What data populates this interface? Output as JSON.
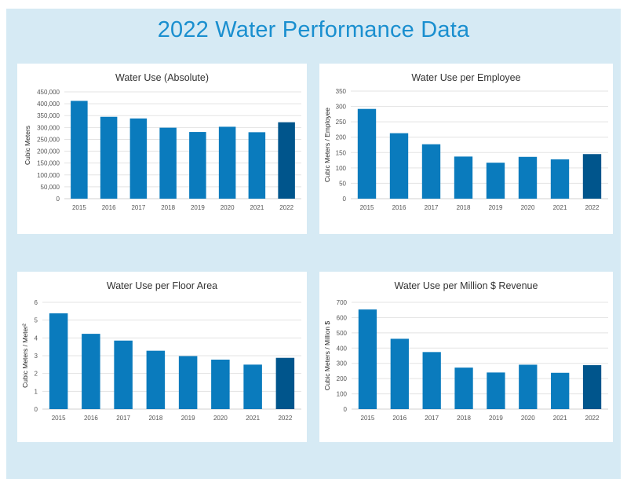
{
  "page": {
    "title": "2022 Water Performance Data",
    "colors": {
      "background_panel": "#d6eaf4",
      "title": "#1a8fcf",
      "bar": "#0a7bbd",
      "bar_highlight": "#00558c"
    }
  },
  "chart_data": [
    {
      "type": "bar",
      "title": "Water Use (Absolute)",
      "xlabel": "",
      "ylabel": "Cubic Meters",
      "categories": [
        "2015",
        "2016",
        "2017",
        "2018",
        "2019",
        "2020",
        "2021",
        "2022"
      ],
      "values": [
        412000,
        345000,
        338000,
        299000,
        281000,
        303000,
        280000,
        322000
      ],
      "highlight_category": "2022",
      "ylim": [
        0,
        450000
      ],
      "yticks": [
        0,
        50000,
        100000,
        150000,
        200000,
        250000,
        300000,
        350000,
        400000,
        450000
      ],
      "ytick_labels": [
        "0",
        "50,000",
        "100,000",
        "150,000",
        "200,000",
        "250,000",
        "300,000",
        "350,000",
        "400,000",
        "450,000"
      ],
      "grid": true,
      "legend": "none"
    },
    {
      "type": "bar",
      "title": "Water Use per Employee",
      "xlabel": "",
      "ylabel": "Cubic Meters / Employee",
      "categories": [
        "2015",
        "2016",
        "2017",
        "2018",
        "2019",
        "2020",
        "2021",
        "2022"
      ],
      "values": [
        292,
        213,
        177,
        137,
        117,
        136,
        128,
        145
      ],
      "highlight_category": "2022",
      "ylim": [
        0,
        350
      ],
      "yticks": [
        0,
        50,
        100,
        150,
        200,
        250,
        300,
        350
      ],
      "ytick_labels": [
        "0",
        "50",
        "100",
        "150",
        "200",
        "250",
        "300",
        "350"
      ],
      "grid": true,
      "legend": "none"
    },
    {
      "type": "bar",
      "title": "Water Use per Floor Area",
      "xlabel": "",
      "ylabel": "Cubic Meters / Meter²",
      "categories": [
        "2015",
        "2016",
        "2017",
        "2018",
        "2019",
        "2020",
        "2021",
        "2022"
      ],
      "values": [
        5.38,
        4.23,
        3.85,
        3.28,
        2.98,
        2.78,
        2.5,
        2.88
      ],
      "highlight_category": "2022",
      "ylim": [
        0,
        6
      ],
      "yticks": [
        0,
        1,
        2,
        3,
        4,
        5,
        6
      ],
      "ytick_labels": [
        "0",
        "1",
        "2",
        "3",
        "4",
        "5",
        "6"
      ],
      "grid": true,
      "legend": "none"
    },
    {
      "type": "bar",
      "title": "Water Use per Million $ Revenue",
      "xlabel": "",
      "ylabel": "Cubic Meters / Million $",
      "categories": [
        "2015",
        "2016",
        "2017",
        "2018",
        "2019",
        "2020",
        "2021",
        "2022"
      ],
      "values": [
        653,
        461,
        374,
        272,
        240,
        291,
        238,
        288
      ],
      "highlight_category": "2022",
      "ylim": [
        0,
        700
      ],
      "yticks": [
        0,
        100,
        200,
        300,
        400,
        500,
        600,
        700
      ],
      "ytick_labels": [
        "0",
        "100",
        "200",
        "300",
        "400",
        "500",
        "600",
        "700"
      ],
      "grid": true,
      "legend": "none"
    }
  ]
}
